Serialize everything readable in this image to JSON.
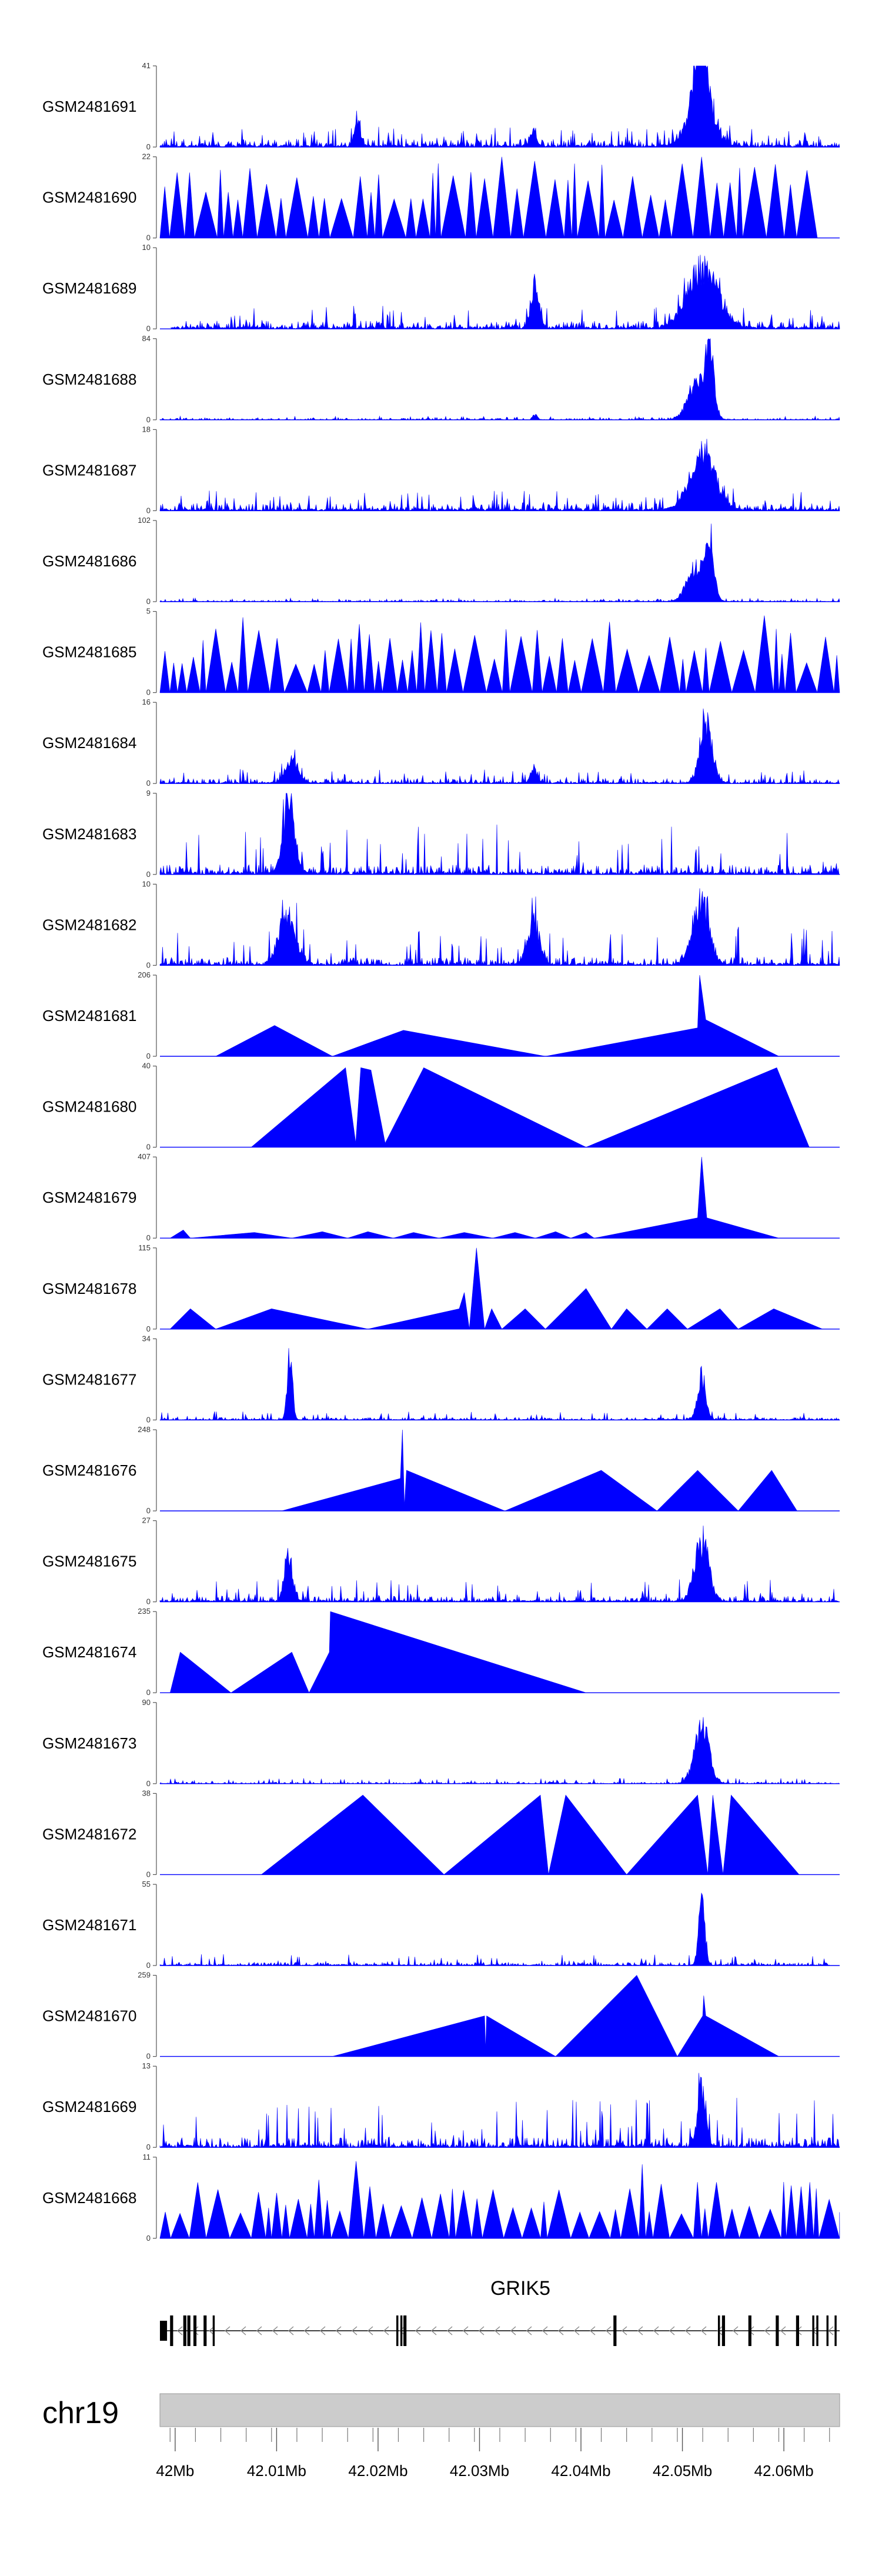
{
  "chart_data": {
    "type": "area",
    "title": "",
    "xlabel": "",
    "ylabel": "",
    "chromosome": "chr19",
    "xlim": [
      41.9985,
      42.0655
    ],
    "x_unit": "Mb",
    "x_ticks": [
      42.0,
      42.01,
      42.02,
      42.03,
      42.04,
      42.05,
      42.06
    ],
    "x_tick_labels": [
      "42Mb",
      "42.01Mb",
      "42.02Mb",
      "42.03Mb",
      "42.04Mb",
      "42.05Mb",
      "42.06Mb"
    ],
    "fill_color": "#0000FF",
    "gene": {
      "name": "GRIK5",
      "strand": "-",
      "start": 41.9985,
      "end": 42.0655,
      "exons": [
        [
          41.9985,
          41.9992
        ],
        [
          41.9995,
          41.9998
        ],
        [
          42.0008,
          42.0011
        ],
        [
          42.0012,
          42.0015
        ],
        [
          42.0018,
          42.0021
        ],
        [
          42.0028,
          42.0031
        ],
        [
          42.0037,
          42.0039
        ],
        [
          42.0218,
          42.022
        ],
        [
          42.0222,
          42.0224
        ],
        [
          42.0225,
          42.0228
        ],
        [
          42.0432,
          42.0435
        ],
        [
          42.0535,
          42.0537
        ],
        [
          42.0539,
          42.0542
        ],
        [
          42.0565,
          42.0568
        ],
        [
          42.0592,
          42.0595
        ],
        [
          42.0612,
          42.0615
        ],
        [
          42.0628,
          42.063
        ],
        [
          42.0632,
          42.0634
        ],
        [
          42.0642,
          42.0644
        ],
        [
          42.065,
          42.0652
        ]
      ]
    },
    "series": [
      {
        "name": "GSM2481691",
        "ymax": 41,
        "start": 41.9985,
        "end": 42.0655,
        "mode": "dense",
        "base": 0.1,
        "noise": 0.06,
        "seed": 11,
        "peaks": [
          [
            42.0518,
            1.0,
            0.0006
          ],
          [
            42.0518,
            0.7,
            0.0012
          ],
          [
            42.018,
            0.35,
            0.0003
          ],
          [
            42.0353,
            0.25,
            0.0003
          ]
        ]
      },
      {
        "name": "GSM2481690",
        "ymax": 22,
        "start": 41.9985,
        "end": 42.0633,
        "mode": "spiky",
        "base": 0.45,
        "noise": 0.5,
        "seed": 23,
        "peaks": []
      },
      {
        "name": "GSM2481689",
        "ymax": 10,
        "start": 41.9996,
        "end": 42.0655,
        "mode": "dense",
        "base": 0.1,
        "noise": 0.08,
        "seed": 37,
        "peaks": [
          [
            42.052,
            0.9,
            0.0015
          ],
          [
            42.0355,
            0.6,
            0.0004
          ]
        ]
      },
      {
        "name": "GSM2481688",
        "ymax": 84,
        "start": 41.9985,
        "end": 42.0655,
        "mode": "dense",
        "base": 0.02,
        "noise": 0.01,
        "seed": 41,
        "peaks": [
          [
            42.0515,
            0.6,
            0.0009
          ],
          [
            42.0527,
            0.95,
            0.0004
          ],
          [
            42.0355,
            0.08,
            0.0002
          ]
        ]
      },
      {
        "name": "GSM2481687",
        "ymax": 18,
        "start": 41.9985,
        "end": 42.0655,
        "mode": "dense",
        "base": 0.1,
        "noise": 0.06,
        "seed": 53,
        "peaks": [
          [
            42.052,
            0.9,
            0.0012
          ]
        ]
      },
      {
        "name": "GSM2481686",
        "ymax": 102,
        "start": 41.9985,
        "end": 42.0655,
        "mode": "dense",
        "base": 0.02,
        "noise": 0.01,
        "seed": 59,
        "peaks": [
          [
            42.0514,
            0.55,
            0.0009
          ],
          [
            42.0527,
            0.9,
            0.0004
          ]
        ]
      },
      {
        "name": "GSM2481685",
        "ymax": 5,
        "start": 41.9985,
        "end": 42.0655,
        "mode": "spiky",
        "base": 0.35,
        "noise": 0.45,
        "seed": 67,
        "peaks": []
      },
      {
        "name": "GSM2481684",
        "ymax": 16,
        "start": 41.9985,
        "end": 42.0655,
        "mode": "dense",
        "base": 0.06,
        "noise": 0.05,
        "seed": 71,
        "peaks": [
          [
            42.0523,
            0.95,
            0.0006
          ],
          [
            42.0115,
            0.38,
            0.0006
          ],
          [
            42.0353,
            0.25,
            0.0003
          ]
        ]
      },
      {
        "name": "GSM2481683",
        "ymax": 9,
        "start": 41.9985,
        "end": 42.0655,
        "mode": "dense",
        "base": 0.12,
        "noise": 0.2,
        "seed": 83,
        "peaks": [
          [
            42.0112,
            0.95,
            0.0006
          ]
        ]
      },
      {
        "name": "GSM2481682",
        "ymax": 10,
        "start": 41.9985,
        "end": 42.0655,
        "mode": "dense",
        "base": 0.1,
        "noise": 0.15,
        "seed": 89,
        "peaks": [
          [
            42.0518,
            0.95,
            0.0008
          ],
          [
            42.011,
            0.75,
            0.0008
          ],
          [
            42.0353,
            0.6,
            0.0006
          ]
        ]
      },
      {
        "name": "GSM2481681",
        "ymax": 206,
        "start": 42.004,
        "end": 42.0595,
        "mode": "sparse",
        "seed": 97,
        "points": [
          [
            42.004,
            0
          ],
          [
            42.0098,
            0.38
          ],
          [
            42.0155,
            0
          ],
          [
            42.0225,
            0.32
          ],
          [
            42.0365,
            0
          ],
          [
            42.0515,
            0.35
          ],
          [
            42.0517,
            1.0
          ],
          [
            42.0523,
            0.45
          ],
          [
            42.0595,
            0
          ]
        ]
      },
      {
        "name": "GSM2481680",
        "ymax": 40,
        "start": 42.0075,
        "end": 42.0625,
        "mode": "sparse",
        "seed": 101,
        "points": [
          [
            42.0075,
            0
          ],
          [
            42.0168,
            0.98
          ],
          [
            42.0178,
            0.05
          ],
          [
            42.0183,
            0.98
          ],
          [
            42.0193,
            0.95
          ],
          [
            42.0207,
            0.05
          ],
          [
            42.0245,
            0.98
          ],
          [
            42.0405,
            0
          ],
          [
            42.0593,
            0.98
          ],
          [
            42.0625,
            0
          ]
        ]
      },
      {
        "name": "GSM2481679",
        "ymax": 407,
        "start": 41.9995,
        "end": 42.0595,
        "mode": "sparse",
        "seed": 103,
        "points": [
          [
            41.9995,
            0
          ],
          [
            42.0008,
            0.1
          ],
          [
            42.0015,
            0
          ],
          [
            42.0078,
            0.07
          ],
          [
            42.0115,
            0
          ],
          [
            42.0145,
            0.08
          ],
          [
            42.017,
            0
          ],
          [
            42.019,
            0.08
          ],
          [
            42.0215,
            0
          ],
          [
            42.0235,
            0.07
          ],
          [
            42.026,
            0
          ],
          [
            42.0285,
            0.07
          ],
          [
            42.0313,
            0
          ],
          [
            42.0335,
            0.07
          ],
          [
            42.0355,
            0
          ],
          [
            42.0375,
            0.08
          ],
          [
            42.039,
            0
          ],
          [
            42.0405,
            0.07
          ],
          [
            42.0413,
            0
          ],
          [
            42.0515,
            0.25
          ],
          [
            42.0519,
            1.0
          ],
          [
            42.0524,
            0.25
          ],
          [
            42.0595,
            0
          ]
        ]
      },
      {
        "name": "GSM2481678",
        "ymax": 115,
        "start": 41.9995,
        "end": 42.0638,
        "mode": "sparse",
        "seed": 107,
        "points": [
          [
            41.9995,
            0
          ],
          [
            42.0015,
            0.25
          ],
          [
            42.004,
            0
          ],
          [
            42.0095,
            0.25
          ],
          [
            42.019,
            0
          ],
          [
            42.028,
            0.25
          ],
          [
            42.0285,
            0.45
          ],
          [
            42.029,
            0
          ],
          [
            42.0297,
            1.0
          ],
          [
            42.0305,
            0
          ],
          [
            42.0312,
            0.25
          ],
          [
            42.0322,
            0
          ],
          [
            42.0345,
            0.25
          ],
          [
            42.0365,
            0
          ],
          [
            42.0405,
            0.5
          ],
          [
            42.043,
            0
          ],
          [
            42.0445,
            0.25
          ],
          [
            42.0465,
            0
          ],
          [
            42.0485,
            0.25
          ],
          [
            42.0505,
            0
          ],
          [
            42.0537,
            0.25
          ],
          [
            42.0555,
            0
          ],
          [
            42.059,
            0.25
          ],
          [
            42.0638,
            0
          ]
        ]
      },
      {
        "name": "GSM2481677",
        "ymax": 34,
        "start": 41.9985,
        "end": 42.0655,
        "mode": "dense",
        "base": 0.03,
        "noise": 0.03,
        "seed": 109,
        "peaks": [
          [
            42.0113,
            0.98,
            0.00025
          ],
          [
            42.0519,
            0.7,
            0.0004
          ]
        ]
      },
      {
        "name": "GSM2481676",
        "ymax": 248,
        "start": 42.0105,
        "end": 42.0613,
        "mode": "sparse",
        "seed": 113,
        "points": [
          [
            42.0105,
            0
          ],
          [
            42.0222,
            0.4
          ],
          [
            42.0224,
            1.0
          ],
          [
            42.0226,
            0.05
          ],
          [
            42.0228,
            0.5
          ],
          [
            42.0325,
            0
          ],
          [
            42.042,
            0.5
          ],
          [
            42.0475,
            0
          ],
          [
            42.0515,
            0.5
          ],
          [
            42.0555,
            0
          ],
          [
            42.0588,
            0.5
          ],
          [
            42.0613,
            0
          ]
        ]
      },
      {
        "name": "GSM2481675",
        "ymax": 27,
        "start": 41.9985,
        "end": 42.0655,
        "mode": "dense",
        "base": 0.07,
        "noise": 0.08,
        "seed": 127,
        "peaks": [
          [
            42.0112,
            0.7,
            0.0004
          ],
          [
            42.0519,
            0.92,
            0.0007
          ]
        ]
      },
      {
        "name": "GSM2481674",
        "ymax": 235,
        "start": 41.9995,
        "end": 42.0405,
        "mode": "sparse",
        "seed": 131,
        "points": [
          [
            41.9995,
            0
          ],
          [
            42.0005,
            0.5
          ],
          [
            42.0055,
            0
          ],
          [
            42.0115,
            0.5
          ],
          [
            42.0132,
            0
          ],
          [
            42.0152,
            0.5
          ],
          [
            42.0153,
            1.0
          ],
          [
            42.0405,
            0
          ]
        ]
      },
      {
        "name": "GSM2481673",
        "ymax": 90,
        "start": 41.9985,
        "end": 42.0655,
        "mode": "dense",
        "base": 0.02,
        "noise": 0.02,
        "seed": 137,
        "peaks": [
          [
            42.0519,
            0.92,
            0.0007
          ]
        ]
      },
      {
        "name": "GSM2481672",
        "ymax": 38,
        "start": 42.0085,
        "end": 42.0615,
        "mode": "sparse",
        "seed": 139,
        "points": [
          [
            42.0085,
            0
          ],
          [
            42.0185,
            0.98
          ],
          [
            42.0265,
            0
          ],
          [
            42.036,
            0.98
          ],
          [
            42.0368,
            0
          ],
          [
            42.0385,
            0.98
          ],
          [
            42.0445,
            0
          ],
          [
            42.0515,
            0.98
          ],
          [
            42.0525,
            0
          ],
          [
            42.053,
            0.98
          ],
          [
            42.054,
            0
          ],
          [
            42.0548,
            0.98
          ],
          [
            42.0615,
            0
          ]
        ]
      },
      {
        "name": "GSM2481671",
        "ymax": 55,
        "start": 41.9985,
        "end": 42.0645,
        "mode": "dense",
        "base": 0.04,
        "noise": 0.04,
        "seed": 149,
        "peaks": [
          [
            42.0519,
            0.95,
            0.0003
          ]
        ]
      },
      {
        "name": "GSM2481670",
        "ymax": 259,
        "start": 42.0155,
        "end": 42.0595,
        "mode": "sparse",
        "seed": 151,
        "points": [
          [
            42.0155,
            0
          ],
          [
            42.0305,
            0.5
          ],
          [
            42.0306,
            0.08
          ],
          [
            42.0307,
            0.5
          ],
          [
            42.0375,
            0
          ],
          [
            42.0455,
            1.0
          ],
          [
            42.0495,
            0
          ],
          [
            42.052,
            0.5
          ],
          [
            42.0521,
            0.75
          ],
          [
            42.0523,
            0.5
          ],
          [
            42.0595,
            0
          ]
        ]
      },
      {
        "name": "GSM2481669",
        "ymax": 13,
        "start": 41.9985,
        "end": 42.0655,
        "mode": "dense",
        "base": 0.12,
        "noise": 0.2,
        "seed": 157,
        "peaks": [
          [
            42.0519,
            0.9,
            0.0004
          ]
        ]
      },
      {
        "name": "GSM2481668",
        "ymax": 11,
        "start": 41.9985,
        "end": 42.0655,
        "mode": "spiky",
        "base": 0.3,
        "noise": 0.4,
        "seed": 163,
        "peaks": [
          [
            42.0178,
            0.95,
            0.0002
          ]
        ]
      }
    ]
  }
}
